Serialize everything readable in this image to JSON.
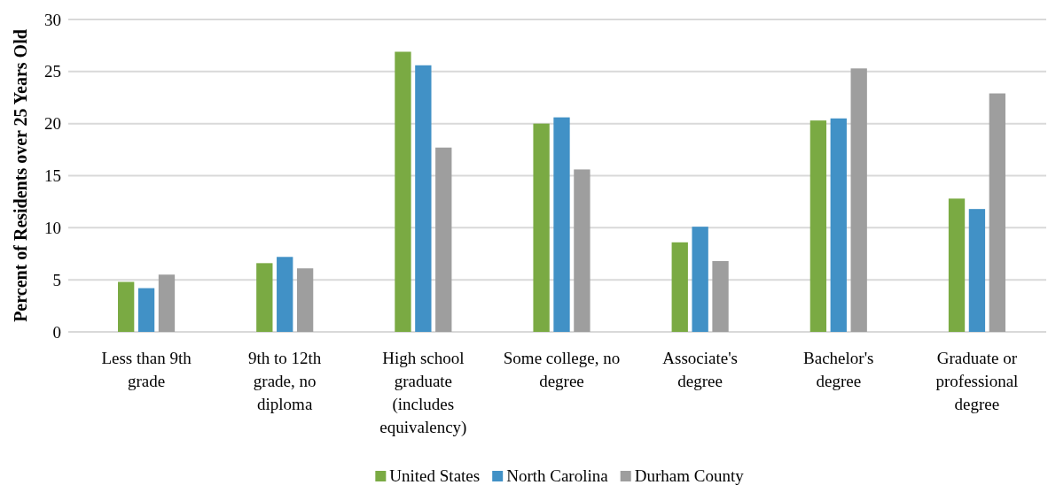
{
  "chart_data": {
    "type": "bar",
    "ylabel": "Percent of Residents over 25 Years Old",
    "categories": [
      "Less than 9th grade",
      "9th to 12th grade, no diploma",
      "High school graduate (includes equivalency)",
      "Some college, no degree",
      "Associate's degree",
      "Bachelor's degree",
      "Graduate or professional degree"
    ],
    "series": [
      {
        "name": "United States",
        "color": "#7aaa43",
        "values": [
          4.8,
          6.6,
          26.9,
          20.0,
          8.6,
          20.3,
          12.8
        ]
      },
      {
        "name": "North Carolina",
        "color": "#4191c6",
        "values": [
          4.2,
          7.2,
          25.6,
          20.6,
          10.1,
          20.5,
          11.8
        ]
      },
      {
        "name": "Durham County",
        "color": "#9e9e9e",
        "values": [
          5.5,
          6.1,
          17.7,
          15.6,
          6.8,
          25.3,
          22.9
        ]
      }
    ],
    "ylim": [
      0,
      30
    ],
    "yticks": [
      0,
      5,
      10,
      15,
      20,
      25,
      30
    ],
    "grid": "y",
    "legend": "bottom"
  }
}
